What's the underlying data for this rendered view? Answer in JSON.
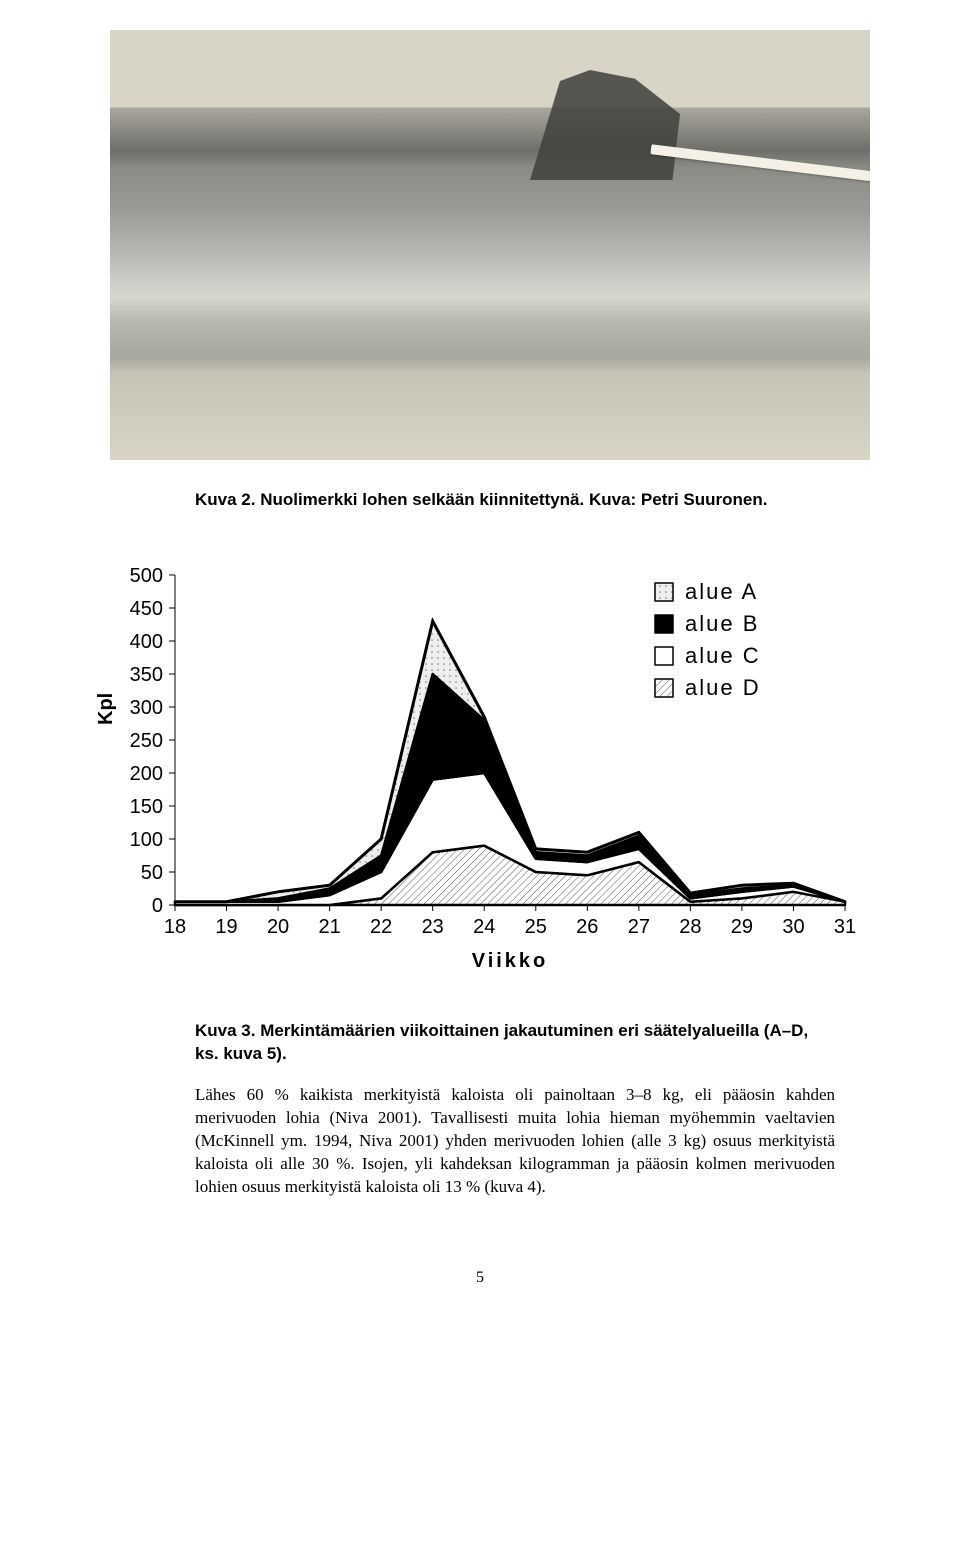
{
  "photo_caption": "Kuva  2. Nuolimerkki lohen selkään kiinnitettynä. Kuva: Petri Suuronen.",
  "chart": {
    "type": "area-stacked",
    "ylabel": "Kpl",
    "xlabel": "Viikko",
    "x": [
      18,
      19,
      20,
      21,
      22,
      23,
      24,
      25,
      26,
      27,
      28,
      29,
      30,
      31
    ],
    "xlim": [
      18,
      31
    ],
    "ylim": [
      0,
      500
    ],
    "ytick_step": 50,
    "yticks": [
      0,
      50,
      100,
      150,
      200,
      250,
      300,
      350,
      400,
      450,
      500
    ],
    "series_order": [
      "alue D",
      "alue C",
      "alue B",
      "alue A"
    ],
    "series": {
      "alue D": {
        "label": "alue D",
        "fill": "hatch-dense",
        "color": "#6d6d6d",
        "values": [
          0,
          0,
          0,
          0,
          10,
          80,
          90,
          50,
          45,
          65,
          5,
          10,
          20,
          5
        ]
      },
      "alue C": {
        "label": "alue C",
        "fill": "solid",
        "color": "#ffffff",
        "values": [
          5,
          5,
          5,
          15,
          40,
          110,
          110,
          20,
          20,
          20,
          5,
          10,
          8,
          0
        ]
      },
      "alue B": {
        "label": "alue B",
        "fill": "solid",
        "color": "#000000",
        "values": [
          0,
          0,
          5,
          10,
          25,
          160,
          80,
          10,
          10,
          20,
          5,
          5,
          2,
          0
        ]
      },
      "alue A": {
        "label": "alue A",
        "fill": "dots",
        "color": "#d8d8d8",
        "values": [
          0,
          0,
          10,
          5,
          25,
          80,
          5,
          5,
          5,
          5,
          3,
          5,
          3,
          0
        ]
      }
    },
    "outline_color": "#000000",
    "outline_width": 2.5,
    "background_color": "#ffffff",
    "label_fontfamily": "Arial",
    "label_fontsize": 20,
    "tick_fontsize": 20,
    "legend": {
      "position": "top-right-inside",
      "items": [
        "alue A",
        "alue B",
        "alue C",
        "alue D"
      ],
      "box_size": 18,
      "fontsize": 22,
      "letterspacing": 2
    }
  },
  "chart_caption": "Kuva 3. Merkintämäärien viikoittainen jakautuminen eri säätelyalueilla (A–D, ks. kuva 5).",
  "body_paragraph": "Lähes 60 % kaikista merkityistä kaloista oli painoltaan 3–8 kg, eli pääosin kahden merivuoden lohia (Niva 2001). Tavallisesti muita lohia hieman myöhemmin vaeltavien (McKinnell ym. 1994, Niva 2001) yhden merivuoden lohien (alle 3 kg) osuus merkityistä kaloista oli alle 30 %. Isojen, yli kahdeksan kilogramman ja pääosin kolmen merivuoden lohien osuus merkityistä kaloista oli 13 % (kuva 4).",
  "page_number": "5"
}
